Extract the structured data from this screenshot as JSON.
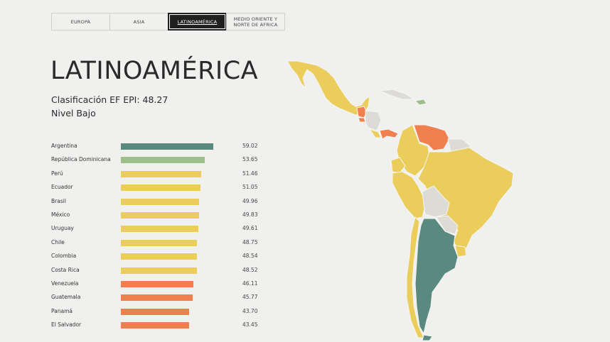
{
  "tabs": [
    {
      "label": "EUROPA",
      "active": false
    },
    {
      "label": "ASIA",
      "active": false
    },
    {
      "label": "LATINOAMÉRICA",
      "active": true
    },
    {
      "label": "MEDIO ORIENTE Y\nNORTE DE ÁFRICA",
      "active": false
    }
  ],
  "title": "LATINOAMÉRICA",
  "score_line": "Clasificación EF EPI: 48.27",
  "level_line": "Nivel Bajo",
  "colors": {
    "very_high": "#5a8a7f",
    "high": "#9dbf89",
    "moderate": "#ebcd5c",
    "low": "#ef7f4f",
    "no_data": "#dddbd5"
  },
  "ranking": [
    {
      "country": "Argentina",
      "score": 59.02,
      "value_label": "59.02",
      "color": "#5a8a7f"
    },
    {
      "country": "República Dominicana",
      "score": 53.65,
      "value_label": "53.65",
      "color": "#9dbf89"
    },
    {
      "country": "Perú",
      "score": 51.46,
      "value_label": "51.46",
      "color": "#ebcd5c"
    },
    {
      "country": "Ecuador",
      "score": 51.05,
      "value_label": "51.05",
      "color": "#ebcd5c"
    },
    {
      "country": "Brasil",
      "score": 49.96,
      "value_label": "49.96",
      "color": "#ebcd5c"
    },
    {
      "country": "México",
      "score": 49.83,
      "value_label": "49.83",
      "color": "#ebcd5c"
    },
    {
      "country": "Uruguay",
      "score": 49.61,
      "value_label": "49.61",
      "color": "#ebcd5c"
    },
    {
      "country": "Chile",
      "score": 48.75,
      "value_label": "48.75",
      "color": "#ebcd5c"
    },
    {
      "country": "Colombia",
      "score": 48.54,
      "value_label": "48.54",
      "color": "#ebcd5c"
    },
    {
      "country": "Costa Rica",
      "score": 48.52,
      "value_label": "48.52",
      "color": "#ebcd5c"
    },
    {
      "country": "Venezuela",
      "score": 46.11,
      "value_label": "46.11",
      "color": "#ef7f4f"
    },
    {
      "country": "Guatemala",
      "score": 45.77,
      "value_label": "45.77",
      "color": "#ef7f4f"
    },
    {
      "country": "Panamá",
      "score": 43.7,
      "value_label": "43.70",
      "color": "#ef7f4f"
    },
    {
      "country": "El Salvador",
      "score": 43.45,
      "value_label": "43.45",
      "color": "#ef7f4f"
    }
  ]
}
